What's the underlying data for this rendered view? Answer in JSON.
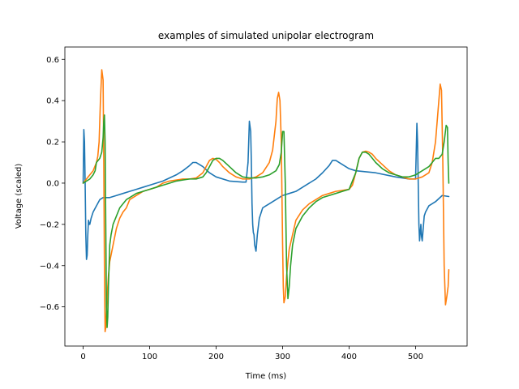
{
  "chart_data": {
    "type": "line",
    "title": "examples of simulated unipolar electrogram",
    "xlabel": "Time (ms)",
    "ylabel": "Voltage (scaled)",
    "xlim": [
      -27.5,
      577.5
    ],
    "ylim": [
      -0.79,
      0.66
    ],
    "xticks": [
      0,
      100,
      200,
      300,
      400,
      500
    ],
    "yticks": [
      -0.6,
      -0.4,
      -0.2,
      0.0,
      0.2,
      0.4,
      0.6
    ],
    "xtick_labels": [
      "0",
      "100",
      "200",
      "300",
      "400",
      "500"
    ],
    "ytick_labels": [
      "−0.6",
      "−0.4",
      "−0.2",
      "0.0",
      "0.2",
      "0.4",
      "0.6"
    ],
    "grid": false,
    "series": [
      {
        "color": "#1f77b4",
        "x": [
          0,
          1,
          2,
          3,
          4,
          5,
          6,
          7,
          8,
          9,
          10,
          12,
          15,
          20,
          25,
          30,
          40,
          50,
          60,
          70,
          80,
          90,
          100,
          120,
          140,
          150,
          160,
          165,
          170,
          180,
          190,
          200,
          220,
          240,
          245,
          248,
          250,
          252,
          253,
          254,
          255,
          256,
          257,
          258,
          260,
          262,
          265,
          268,
          270,
          275,
          280,
          290,
          300,
          310,
          320,
          330,
          340,
          350,
          360,
          370,
          375,
          380,
          390,
          400,
          410,
          440,
          470,
          490,
          500,
          502,
          503,
          504,
          505,
          506,
          507,
          508,
          509,
          510,
          512,
          513,
          515,
          520,
          530,
          540,
          550
        ],
        "y": [
          0.0,
          0.26,
          0.2,
          0.0,
          -0.25,
          -0.37,
          -0.35,
          -0.25,
          -0.18,
          -0.2,
          -0.2,
          -0.17,
          -0.14,
          -0.11,
          -0.08,
          -0.07,
          -0.07,
          -0.06,
          -0.05,
          -0.04,
          -0.03,
          -0.02,
          -0.01,
          0.01,
          0.04,
          0.06,
          0.085,
          0.1,
          0.1,
          0.08,
          0.05,
          0.03,
          0.01,
          0.005,
          0.005,
          0.1,
          0.3,
          0.25,
          0.1,
          -0.1,
          -0.2,
          -0.24,
          -0.25,
          -0.3,
          -0.33,
          -0.25,
          -0.17,
          -0.14,
          -0.12,
          -0.11,
          -0.1,
          -0.08,
          -0.06,
          -0.05,
          -0.04,
          -0.02,
          0.0,
          0.02,
          0.05,
          0.085,
          0.11,
          0.11,
          0.09,
          0.07,
          0.06,
          0.05,
          0.03,
          0.02,
          0.02,
          0.29,
          0.2,
          0.0,
          -0.2,
          -0.28,
          -0.24,
          -0.2,
          -0.26,
          -0.28,
          -0.2,
          -0.16,
          -0.14,
          -0.11,
          -0.09,
          -0.06,
          -0.065
        ]
      },
      {
        "color": "#ff7f0e",
        "x": [
          0,
          5,
          10,
          15,
          20,
          22,
          24,
          26,
          28,
          30,
          31,
          32,
          33,
          34,
          36,
          38,
          40,
          45,
          50,
          55,
          60,
          65,
          70,
          80,
          90,
          100,
          110,
          120,
          130,
          140,
          150,
          160,
          170,
          180,
          185,
          190,
          195,
          200,
          205,
          210,
          220,
          230,
          240,
          250,
          260,
          270,
          280,
          285,
          290,
          292,
          294,
          296,
          298,
          300,
          301,
          302,
          304,
          306,
          308,
          310,
          315,
          320,
          330,
          340,
          350,
          360,
          370,
          380,
          390,
          400,
          405,
          410,
          415,
          420,
          425,
          430,
          435,
          440,
          450,
          460,
          470,
          480,
          490,
          500,
          510,
          520,
          525,
          530,
          535,
          537,
          539,
          541,
          543,
          545,
          547,
          549,
          550
        ],
        "y": [
          0.0,
          0.02,
          0.04,
          0.06,
          0.1,
          0.13,
          0.2,
          0.4,
          0.55,
          0.5,
          0.1,
          -0.4,
          -0.72,
          -0.7,
          -0.55,
          -0.45,
          -0.38,
          -0.3,
          -0.22,
          -0.17,
          -0.14,
          -0.12,
          -0.08,
          -0.06,
          -0.04,
          -0.03,
          -0.02,
          0.0,
          0.01,
          0.015,
          0.02,
          0.02,
          0.025,
          0.05,
          0.08,
          0.11,
          0.12,
          0.115,
          0.1,
          0.08,
          0.05,
          0.03,
          0.02,
          0.02,
          0.03,
          0.05,
          0.1,
          0.16,
          0.3,
          0.41,
          0.44,
          0.4,
          0.2,
          -0.3,
          -0.5,
          -0.58,
          -0.55,
          -0.45,
          -0.38,
          -0.32,
          -0.25,
          -0.18,
          -0.13,
          -0.1,
          -0.08,
          -0.06,
          -0.05,
          -0.04,
          -0.035,
          -0.03,
          -0.01,
          0.05,
          0.12,
          0.15,
          0.155,
          0.15,
          0.14,
          0.12,
          0.09,
          0.06,
          0.04,
          0.03,
          0.02,
          0.02,
          0.03,
          0.05,
          0.1,
          0.2,
          0.4,
          0.48,
          0.45,
          0.1,
          -0.4,
          -0.59,
          -0.55,
          -0.5,
          -0.42
        ]
      },
      {
        "color": "#2ca02c",
        "x": [
          0,
          5,
          10,
          15,
          18,
          20,
          25,
          28,
          30,
          31,
          32,
          33,
          34,
          35,
          36,
          37,
          38,
          39,
          40,
          42,
          45,
          50,
          55,
          60,
          65,
          70,
          80,
          90,
          100,
          110,
          120,
          130,
          140,
          150,
          160,
          170,
          180,
          185,
          190,
          195,
          200,
          205,
          210,
          220,
          230,
          240,
          250,
          260,
          270,
          280,
          290,
          295,
          298,
          300,
          302,
          304,
          306,
          308,
          310,
          312,
          315,
          320,
          330,
          340,
          350,
          360,
          370,
          380,
          390,
          400,
          410,
          415,
          420,
          425,
          430,
          435,
          440,
          450,
          460,
          470,
          480,
          490,
          500,
          510,
          520,
          530,
          535,
          540,
          543,
          546,
          548,
          549,
          550
        ],
        "y": [
          0.0,
          0.01,
          0.02,
          0.04,
          0.06,
          0.1,
          0.12,
          0.15,
          0.22,
          0.3,
          0.33,
          0.2,
          -0.2,
          -0.6,
          -0.7,
          -0.65,
          -0.5,
          -0.4,
          -0.3,
          -0.25,
          -0.2,
          -0.16,
          -0.12,
          -0.1,
          -0.08,
          -0.07,
          -0.05,
          -0.04,
          -0.03,
          -0.02,
          -0.01,
          0.0,
          0.01,
          0.015,
          0.02,
          0.02,
          0.03,
          0.05,
          0.08,
          0.11,
          0.12,
          0.12,
          0.11,
          0.08,
          0.05,
          0.03,
          0.025,
          0.025,
          0.03,
          0.04,
          0.06,
          0.09,
          0.15,
          0.25,
          0.25,
          0.0,
          -0.4,
          -0.56,
          -0.5,
          -0.4,
          -0.3,
          -0.22,
          -0.16,
          -0.12,
          -0.09,
          -0.07,
          -0.06,
          -0.05,
          -0.04,
          -0.03,
          0.05,
          0.12,
          0.15,
          0.15,
          0.14,
          0.12,
          0.1,
          0.07,
          0.05,
          0.04,
          0.03,
          0.03,
          0.04,
          0.06,
          0.08,
          0.12,
          0.12,
          0.14,
          0.2,
          0.28,
          0.27,
          0.1,
          0.0
        ]
      }
    ]
  }
}
